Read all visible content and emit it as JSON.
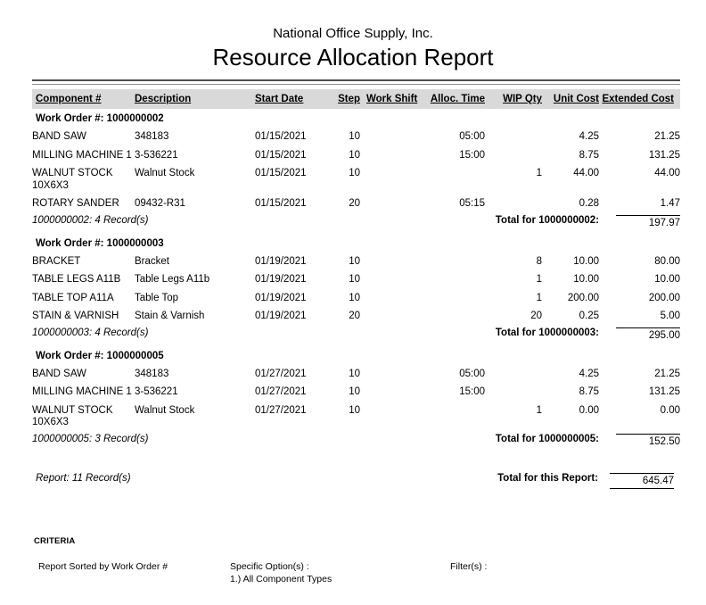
{
  "report": {
    "company": "National Office Supply, Inc.",
    "title": "Resource Allocation Report",
    "columns": [
      "Component #",
      "Description",
      "Start Date",
      "Step",
      "Work Shift",
      "Alloc. Time",
      "WIP Qty",
      "Unit Cost",
      "Extended Cost"
    ],
    "groups": [
      {
        "work_order_label": "Work Order #: 1000000002",
        "rows": [
          {
            "component": "BAND SAW",
            "description": "348183",
            "start_date": "01/15/2021",
            "step": "10",
            "work_shift": "",
            "alloc_time": "05:00",
            "wip_qty": "",
            "unit_cost": "4.25",
            "extended_cost": "21.25"
          },
          {
            "component": "MILLING MACHINE 1",
            "description": "3-536221",
            "start_date": "01/15/2021",
            "step": "10",
            "work_shift": "",
            "alloc_time": "15:00",
            "wip_qty": "",
            "unit_cost": "8.75",
            "extended_cost": "131.25"
          },
          {
            "component": "WALNUT STOCK 10X6X3",
            "description": "Walnut Stock",
            "start_date": "01/15/2021",
            "step": "10",
            "work_shift": "",
            "alloc_time": "",
            "wip_qty": "1",
            "unit_cost": "44.00",
            "extended_cost": "44.00"
          },
          {
            "component": "ROTARY SANDER",
            "description": "09432-R31",
            "start_date": "01/15/2021",
            "step": "20",
            "work_shift": "",
            "alloc_time": "05:15",
            "wip_qty": "",
            "unit_cost": "0.28",
            "extended_cost": "1.47"
          }
        ],
        "record_count": "1000000002: 4 Record(s)",
        "total_label": "Total for 1000000002:",
        "total_value": "197.97"
      },
      {
        "work_order_label": "Work Order #: 1000000003",
        "rows": [
          {
            "component": "BRACKET",
            "description": "Bracket",
            "start_date": "01/19/2021",
            "step": "10",
            "work_shift": "",
            "alloc_time": "",
            "wip_qty": "8",
            "unit_cost": "10.00",
            "extended_cost": "80.00"
          },
          {
            "component": "TABLE LEGS A11B",
            "description": "Table Legs A11b",
            "start_date": "01/19/2021",
            "step": "10",
            "work_shift": "",
            "alloc_time": "",
            "wip_qty": "1",
            "unit_cost": "10.00",
            "extended_cost": "10.00"
          },
          {
            "component": "TABLE TOP A11A",
            "description": "Table Top",
            "start_date": "01/19/2021",
            "step": "10",
            "work_shift": "",
            "alloc_time": "",
            "wip_qty": "1",
            "unit_cost": "200.00",
            "extended_cost": "200.00"
          },
          {
            "component": "STAIN & VARNISH",
            "description": "Stain & Varnish",
            "start_date": "01/19/2021",
            "step": "20",
            "work_shift": "",
            "alloc_time": "",
            "wip_qty": "20",
            "unit_cost": "0.25",
            "extended_cost": "5.00"
          }
        ],
        "record_count": "1000000003: 4 Record(s)",
        "total_label": "Total for 1000000003:",
        "total_value": "295.00"
      },
      {
        "work_order_label": "Work Order #: 1000000005",
        "rows": [
          {
            "component": "BAND SAW",
            "description": "348183",
            "start_date": "01/27/2021",
            "step": "10",
            "work_shift": "",
            "alloc_time": "05:00",
            "wip_qty": "",
            "unit_cost": "4.25",
            "extended_cost": "21.25"
          },
          {
            "component": "MILLING MACHINE 1",
            "description": "3-536221",
            "start_date": "01/27/2021",
            "step": "10",
            "work_shift": "",
            "alloc_time": "15:00",
            "wip_qty": "",
            "unit_cost": "8.75",
            "extended_cost": "131.25"
          },
          {
            "component": "WALNUT STOCK 10X6X3",
            "description": "Walnut Stock",
            "start_date": "01/27/2021",
            "step": "10",
            "work_shift": "",
            "alloc_time": "",
            "wip_qty": "1",
            "unit_cost": "0.00",
            "extended_cost": "0.00"
          }
        ],
        "record_count": "1000000005: 3 Record(s)",
        "total_label": "Total for 1000000005:",
        "total_value": "152.50"
      }
    ],
    "summary": {
      "record_count": "Report: 11 Record(s)",
      "total_label": "Total for this Report:",
      "total_value": "645.47"
    },
    "criteria": {
      "heading": "CRITERIA",
      "sorted_by": "Report Sorted by Work Order #",
      "specific_options_label": "Specific Option(s) :",
      "specific_options": [
        "1.) All Component Types"
      ],
      "filters_label": "Filter(s) :"
    },
    "colors": {
      "header_band": "#d9d9d9",
      "rule_dark": "#4d4d4d",
      "rule_light": "#8f8f8f",
      "text": "#000000"
    }
  }
}
